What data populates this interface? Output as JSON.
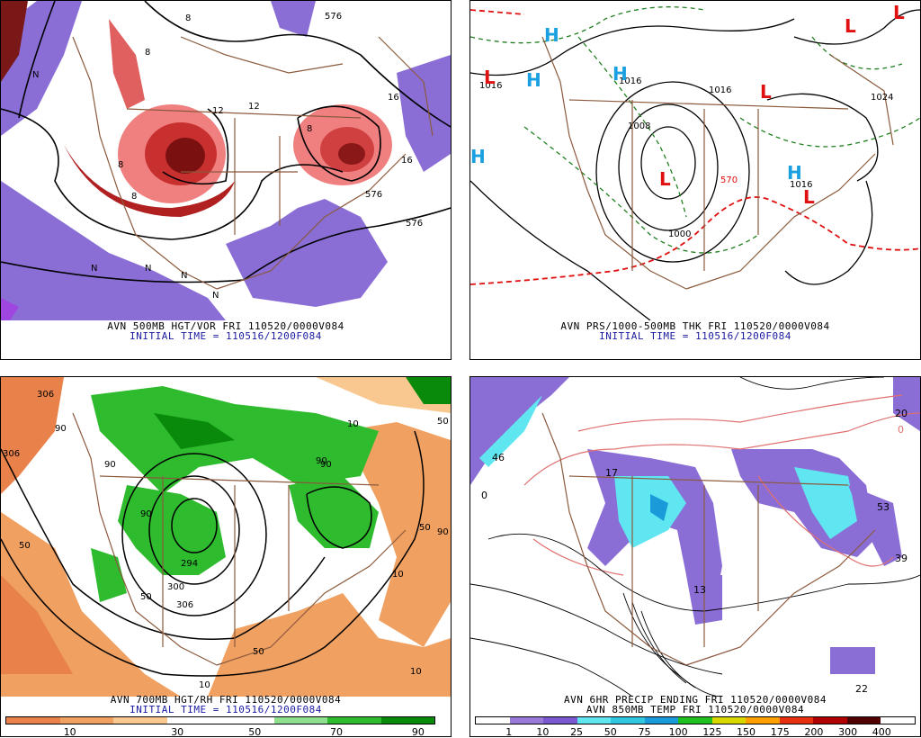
{
  "panels": {
    "p500": {
      "line1": "AVN 500MB HGT/VOR FRI 110520/0000V084",
      "line2": "INITIAL TIME = 110516/1200F084",
      "labels": [
        "576",
        "8",
        "12",
        "16",
        "16",
        "576",
        "8",
        "8",
        "N",
        "N",
        "N",
        "N",
        "N",
        "8",
        "12",
        "8",
        "576"
      ]
    },
    "prs": {
      "line1": "AVN PRS/1000-500MB THK FRI 110520/0000V084",
      "line2": "INITIAL TIME = 110516/1200F084",
      "contour_labels": [
        "1016",
        "1016",
        "1016",
        "1024",
        "1000",
        "1016",
        "1008",
        "570"
      ],
      "highs": [
        "H",
        "H",
        "H",
        "H",
        "H"
      ],
      "lows": [
        "L",
        "L",
        "L",
        "L",
        "L",
        "L"
      ]
    },
    "p700": {
      "line1": "AVN 700MB HGT/RH FRI 110520/0000V084",
      "line2": "INITIAL TIME = 110516/1200F084",
      "contour_labels": [
        "306",
        "306",
        "90",
        "90",
        "90",
        "90",
        "50",
        "10",
        "50",
        "294",
        "300",
        "306",
        "50",
        "10",
        "50",
        "10",
        "50",
        "90",
        "90",
        "10"
      ]
    },
    "precip": {
      "line1": "AVN 6HR PRECIP ENDING FRI 110520/0000V084",
      "line2": "AVN 850MB TEMP FRI 110520/0000V084",
      "value_labels": [
        "46",
        "20",
        "0",
        "17",
        "53",
        "39",
        "22",
        "13",
        "0"
      ]
    }
  },
  "rh_colorbar": {
    "ticks": [
      "10",
      "30",
      "50",
      "70",
      "90"
    ],
    "colors": [
      "#e8824a",
      "#f0a060",
      "#f8c890",
      "#ffffff",
      "#ffffff",
      "#8ee08e",
      "#2ebb2e",
      "#0a8a0a"
    ]
  },
  "precip_colorbar": {
    "ticks": [
      "1",
      "10",
      "25",
      "50",
      "75",
      "100",
      "125",
      "150",
      "175",
      "200",
      "300",
      "400"
    ],
    "colors": [
      "#ffffff",
      "#9a7ad8",
      "#7a58d0",
      "#60e6f0",
      "#30c8e0",
      "#1a9ad8",
      "#20c020",
      "#d8d800",
      "#ffa000",
      "#e83010",
      "#b00000",
      "#500000",
      "#ffffff"
    ]
  }
}
